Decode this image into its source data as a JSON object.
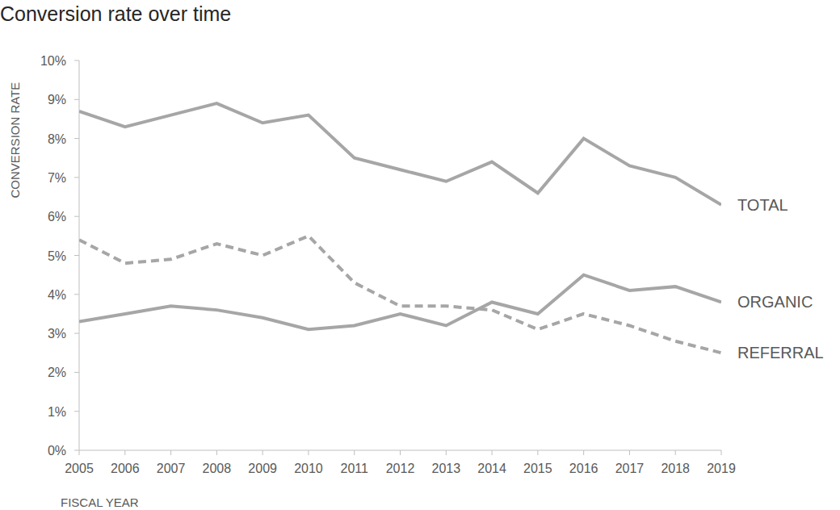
{
  "chart_data": {
    "type": "line",
    "title": "Conversion rate over time",
    "x_label": "FISCAL YEAR",
    "y_label": "CONVERSION RATE",
    "categories": [
      "2005",
      "2006",
      "2007",
      "2008",
      "2009",
      "2010",
      "2011",
      "2012",
      "2013",
      "2014",
      "2015",
      "2016",
      "2017",
      "2018",
      "2019"
    ],
    "series": [
      {
        "name": "TOTAL",
        "color": "#a6a6a6",
        "line_style": "solid",
        "values": [
          8.7,
          8.3,
          8.6,
          8.9,
          8.4,
          8.6,
          7.5,
          7.2,
          6.9,
          7.4,
          6.6,
          8.0,
          7.3,
          7.0,
          6.3
        ]
      },
      {
        "name": "ORGANIC",
        "color": "#a6a6a6",
        "line_style": "solid",
        "values": [
          3.3,
          3.5,
          3.7,
          3.6,
          3.4,
          3.1,
          3.2,
          3.5,
          3.2,
          3.8,
          3.5,
          4.5,
          4.1,
          4.2,
          3.8
        ]
      },
      {
        "name": "REFERRAL",
        "color": "#a6a6a6",
        "line_style": "dashed",
        "values": [
          5.4,
          4.8,
          4.9,
          5.3,
          5.0,
          5.5,
          4.3,
          3.7,
          3.7,
          3.6,
          3.1,
          3.5,
          3.2,
          2.8,
          2.5
        ]
      }
    ],
    "ylim": [
      0,
      10
    ],
    "yticks": [
      {
        "value": 0,
        "label": "0%"
      },
      {
        "value": 1,
        "label": "1%"
      },
      {
        "value": 2,
        "label": "2%"
      },
      {
        "value": 3,
        "label": "3%"
      },
      {
        "value": 4,
        "label": "4%"
      },
      {
        "value": 5,
        "label": "5%"
      },
      {
        "value": 6,
        "label": "6%"
      },
      {
        "value": 7,
        "label": "7%"
      },
      {
        "value": 8,
        "label": "8%"
      },
      {
        "value": 9,
        "label": "9%"
      },
      {
        "value": 10,
        "label": "10%"
      }
    ],
    "grid": false
  }
}
